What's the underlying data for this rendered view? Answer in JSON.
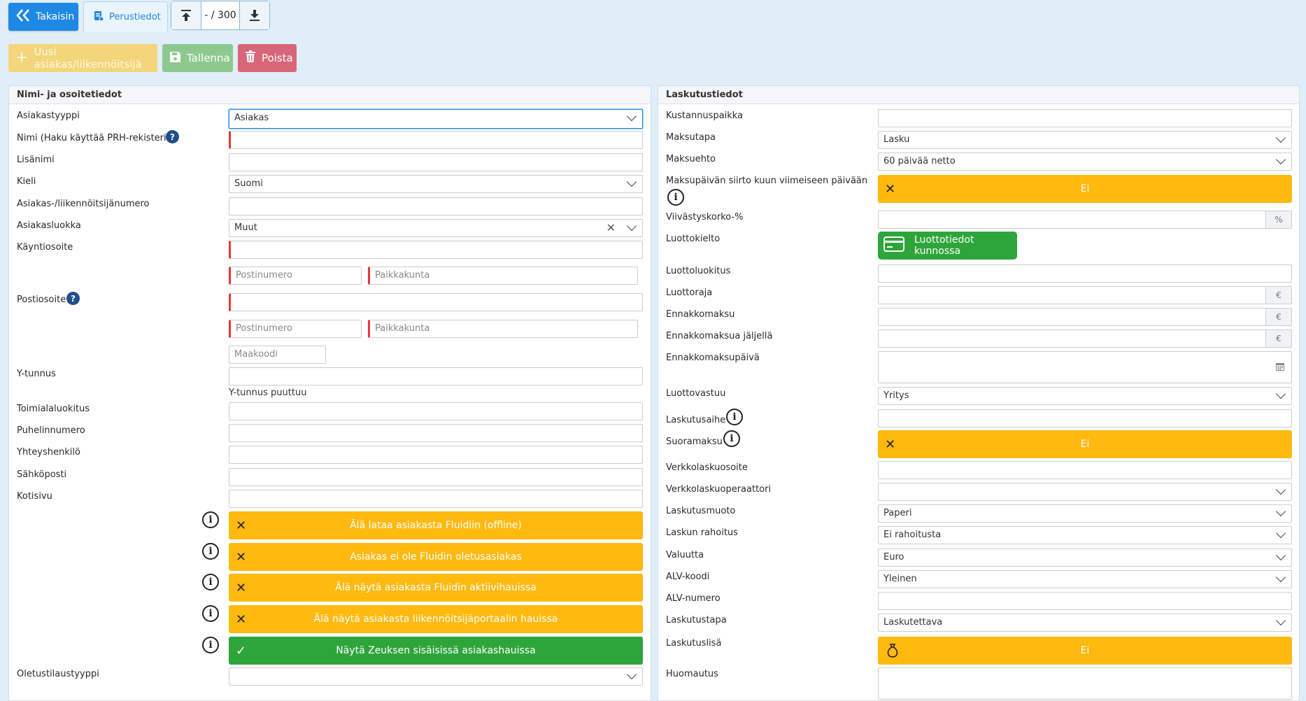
{
  "topbar": {
    "back_label": "Takaisin",
    "tab_label": "Perustiedot",
    "pager_count": "- / 300"
  },
  "actions": {
    "new_label": "Uusi asiakas/liikennöitsijä",
    "save_label": "Tallenna",
    "delete_label": "Poista"
  },
  "left": {
    "title": "Nimi- ja osoitetiedot",
    "customer_type": {
      "label": "Asiakastyyppi",
      "value": "Asiakas"
    },
    "name": {
      "label": "Nimi (Haku käyttää PRH-rekisteriä)",
      "value": ""
    },
    "extra_name": {
      "label": "Lisänimi",
      "value": ""
    },
    "language": {
      "label": "Kieli",
      "value": "Suomi"
    },
    "customer_number": {
      "label": "Asiakas-/liikennöitsijänumero",
      "value": ""
    },
    "customer_class": {
      "label": "Asiakasluokka",
      "value": "Muut"
    },
    "visit_address": {
      "label": "Käyntiosoite",
      "value": ""
    },
    "visit_postcode_ph": "Postinumero",
    "visit_city_ph": "Paikkakunta",
    "postal_address": {
      "label": "Postiosoite",
      "value": ""
    },
    "postal_postcode_ph": "Postinumero",
    "postal_city_ph": "Paikkakunta",
    "country_ph": "Maakoodi",
    "business_id": {
      "label": "Y-tunnus",
      "value": "",
      "note": "Y-tunnus puuttuu"
    },
    "industry": {
      "label": "Toimialaluokitus",
      "value": ""
    },
    "phone": {
      "label": "Puhelinnumero",
      "value": ""
    },
    "contact": {
      "label": "Yhteyshenkilö",
      "value": ""
    },
    "email": {
      "label": "Sähköposti",
      "value": ""
    },
    "homepage": {
      "label": "Kotisivu",
      "value": ""
    },
    "toggles": [
      {
        "label": "Älä lataa asiakasta Fluidiin (offline)",
        "state": "off"
      },
      {
        "label": "Asiakas ei ole Fluidin oletusasiakas",
        "state": "off"
      },
      {
        "label": "Älä näytä asiakasta Fluidin aktiivihauissa",
        "state": "off"
      },
      {
        "label": "Älä näytä asiakasta liikennöitsijäportaalin hauissa",
        "state": "off"
      },
      {
        "label": "Näytä Zeuksen sisäisissä asiakashauissa",
        "state": "on"
      }
    ],
    "default_order_type": {
      "label": "Oletustilaustyyppi",
      "value": ""
    }
  },
  "right": {
    "title": "Laskutustiedot",
    "cost_center": {
      "label": "Kustannuspaikka",
      "value": ""
    },
    "payment_method": {
      "label": "Maksutapa",
      "value": "Lasku"
    },
    "payment_term": {
      "label": "Maksuehto",
      "value": "60 päivää netto"
    },
    "due_shift": {
      "label": "Maksupäivän siirto kuun viimeiseen päivään",
      "value": "Ei"
    },
    "late_interest": {
      "label": "Viivästyskorko-%",
      "value": "",
      "unit": "%"
    },
    "credit_ban": {
      "label": "Luottokielto",
      "value": "Luottotiedot kunnossa"
    },
    "credit_class": {
      "label": "Luottoluokitus",
      "value": ""
    },
    "credit_limit": {
      "label": "Luottoraja",
      "value": "",
      "unit": "€"
    },
    "prepayment": {
      "label": "Ennakkomaksu",
      "value": "",
      "unit": "€"
    },
    "prepayment_left": {
      "label": "Ennakkomaksua jäljellä",
      "value": "",
      "unit": "€"
    },
    "prepayment_date": {
      "label": "Ennakkomaksupäivä",
      "value": ""
    },
    "credit_responsible": {
      "label": "Luottovastuu",
      "value": "Yritys"
    },
    "invoice_subject": {
      "label": "Laskutusaihe",
      "value": ""
    },
    "direct_payment": {
      "label": "Suoramaksu",
      "value": "Ei"
    },
    "einvoice_address": {
      "label": "Verkkolaskuosoite",
      "value": ""
    },
    "einvoice_operator": {
      "label": "Verkkolaskuoperaattori",
      "value": ""
    },
    "invoice_format": {
      "label": "Laskutusmuoto",
      "value": "Paperi"
    },
    "invoice_financing": {
      "label": "Laskun rahoitus",
      "value": "Ei rahoitusta"
    },
    "currency": {
      "label": "Valuutta",
      "value": "Euro"
    },
    "vat_code": {
      "label": "ALV-koodi",
      "value": "Yleinen"
    },
    "vat_number": {
      "label": "ALV-numero",
      "value": ""
    },
    "invoicing_method": {
      "label": "Laskutustapa",
      "value": "Laskutettava"
    },
    "invoice_extra": {
      "label": "Laskutuslisä",
      "value": "Ei"
    },
    "remark": {
      "label": "Huomautus",
      "value": ""
    }
  }
}
